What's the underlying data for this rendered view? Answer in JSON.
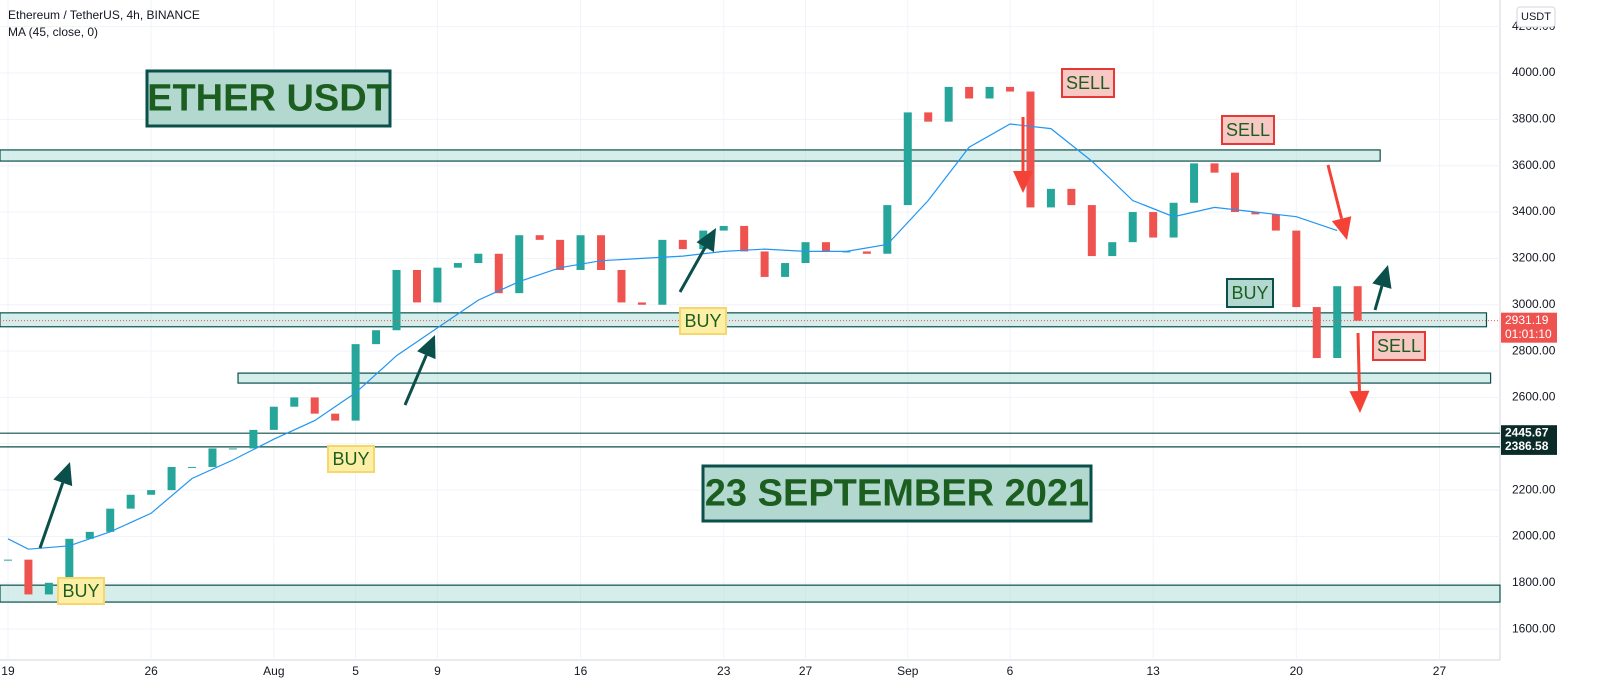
{
  "header": {
    "symbol": "Ethereum / TetherUS, 4h, BINANCE",
    "indicator": "MA (45, close, 0)",
    "currency": "USDT"
  },
  "chart_data": {
    "type": "candlestick",
    "title": "ETHER USDT",
    "subtitle": "23 SEPTEMBER 2021",
    "x": [
      0,
      1,
      2,
      3,
      4,
      5,
      6,
      7,
      8,
      9,
      10,
      11,
      12,
      13,
      14,
      15,
      16,
      17,
      18,
      19,
      20,
      21,
      22,
      23,
      24,
      25,
      26,
      27,
      28,
      29,
      30,
      31,
      32,
      33,
      34,
      35,
      36,
      37,
      38,
      39,
      40,
      41,
      42,
      43,
      44,
      45,
      46,
      47,
      48,
      49,
      50,
      51,
      52,
      53,
      54,
      55,
      56,
      57,
      58,
      59,
      60,
      61,
      62,
      63,
      64,
      65,
      66
    ],
    "close": [
      1900,
      1750,
      1800,
      1990,
      2020,
      2120,
      2180,
      2200,
      2300,
      2300,
      2380,
      2380,
      2460,
      2560,
      2600,
      2530,
      2500,
      2830,
      2890,
      3150,
      3010,
      3160,
      3180,
      3220,
      3050,
      3300,
      3280,
      3150,
      3300,
      3150,
      3010,
      3000,
      3280,
      3240,
      3320,
      3340,
      3230,
      3120,
      3180,
      3270,
      3230,
      3230,
      3220,
      3430,
      3830,
      3790,
      3940,
      3890,
      3940,
      3920,
      3420,
      3500,
      3430,
      3210,
      3270,
      3400,
      3290,
      3440,
      3610,
      3570,
      3400,
      3390,
      3320,
      2990,
      2770,
      3080,
      2931.19
    ],
    "up_color": "#26a69a",
    "down_color": "#ef5350",
    "ma": {
      "color": "#2196f3",
      "x": [
        0,
        1,
        3,
        5,
        7,
        9,
        11,
        13,
        15,
        17,
        19,
        21,
        23,
        25,
        27,
        29,
        31,
        33,
        35,
        37,
        39,
        41,
        43,
        45,
        47,
        49,
        51,
        53,
        55,
        57,
        59,
        61,
        63,
        65
      ],
      "values": [
        1990,
        1945,
        1960,
        2020,
        2100,
        2250,
        2330,
        2420,
        2500,
        2620,
        2780,
        2900,
        3020,
        3100,
        3160,
        3190,
        3200,
        3210,
        3230,
        3240,
        3230,
        3230,
        3260,
        3450,
        3680,
        3780,
        3760,
        3620,
        3450,
        3380,
        3420,
        3400,
        3380,
        3320
      ]
    },
    "xlim": [
      -0.39,
      72.96
    ],
    "xticks": [
      {
        "value": 0,
        "label": "19"
      },
      {
        "value": 7,
        "label": "26"
      },
      {
        "value": 13,
        "label": "Aug"
      },
      {
        "value": 17,
        "label": "5"
      },
      {
        "value": 21,
        "label": "9"
      },
      {
        "value": 28,
        "label": "16"
      },
      {
        "value": 35,
        "label": "23"
      },
      {
        "value": 39,
        "label": "27"
      },
      {
        "value": 44,
        "label": "Sep"
      },
      {
        "value": 49,
        "label": "6"
      },
      {
        "value": 56,
        "label": "13"
      },
      {
        "value": 63,
        "label": "20"
      },
      {
        "value": 70,
        "label": "27"
      }
    ],
    "ylim": [
      1467,
      4315
    ],
    "yticks": [
      {
        "value": 1600,
        "label": "1600.00"
      },
      {
        "value": 1800,
        "label": "1800.00"
      },
      {
        "value": 2000,
        "label": "2000.00"
      },
      {
        "value": 2200,
        "label": "2200.00"
      },
      {
        "value": 2400,
        "label": "2400.00"
      },
      {
        "value": 2600,
        "label": "2600.00"
      },
      {
        "value": 2800,
        "label": "2800.00"
      },
      {
        "value": 3000,
        "label": "3000.00"
      },
      {
        "value": 3200,
        "label": "3200.00"
      },
      {
        "value": 3400,
        "label": "3400.00"
      },
      {
        "value": 3600,
        "label": "3600.00"
      },
      {
        "value": 3800,
        "label": "3800.00"
      },
      {
        "value": 4000,
        "label": "4000.00"
      },
      {
        "value": 4200,
        "label": "4200.00"
      }
    ],
    "grid": true,
    "last_price": {
      "value": 2931.19,
      "label": "2931.19",
      "countdown": "01:01:10"
    },
    "levels": [
      {
        "value": 2445.67,
        "label": "2445.67"
      },
      {
        "value": 2386.58,
        "label": "2386.58"
      }
    ],
    "zones": [
      {
        "from": -0.39,
        "to": 67.1,
        "low": 3620,
        "high": 3668
      },
      {
        "from": -0.39,
        "to": 72.3,
        "low": 2905,
        "high": 2965
      },
      {
        "from": 11.25,
        "to": 72.5,
        "low": 2662,
        "high": 2705
      },
      {
        "from": -0.39,
        "to": 72.96,
        "low": 1717,
        "high": 1790
      }
    ],
    "signals": [
      "BUY",
      "BUY",
      "BUY",
      "SELL",
      "SELL",
      "BUY",
      "SELL"
    ]
  }
}
